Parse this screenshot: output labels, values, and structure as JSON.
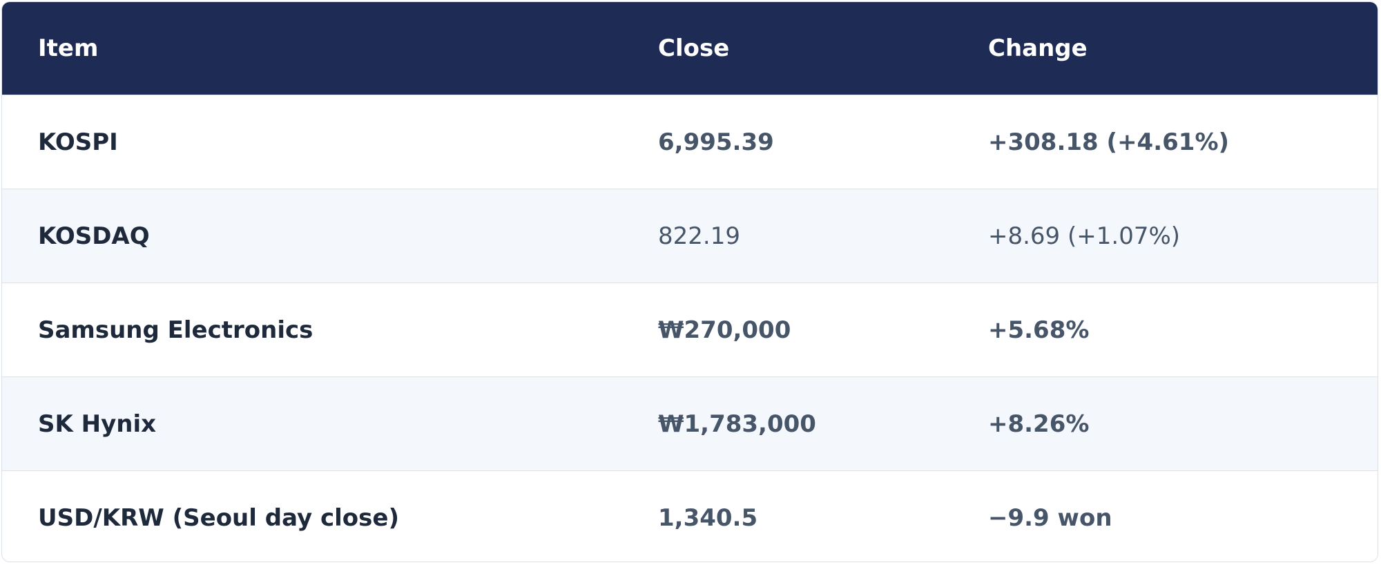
{
  "table": {
    "header": [
      "Item",
      "Close",
      "Change"
    ],
    "rows": [
      [
        "KOSPI",
        "6,995.39",
        "+308.18 (+4.61%)"
      ],
      [
        "KOSDAQ",
        "822.19",
        "+8.69 (+1.07%)"
      ],
      [
        "Samsung Electronics",
        "₩270,000",
        "+5.68%"
      ],
      [
        "SK Hynix",
        "₩1,783,000",
        "+8.26%"
      ],
      [
        "USD/KRW (Seoul day close)",
        "1,340.5",
        "−9.9 won"
      ]
    ]
  }
}
